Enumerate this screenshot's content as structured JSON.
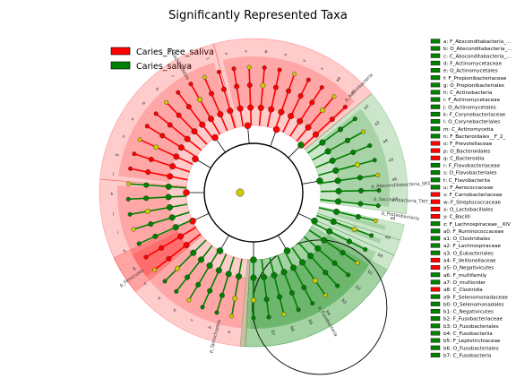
{
  "chart_data": {
    "type": "cladogram",
    "title": "Significantly Represented Taxa",
    "legend": {
      "placement": "top-left",
      "entries": [
        {
          "name": "Caries_Free_saliva",
          "color": "#ff0000"
        },
        {
          "name": "Caries_saliva",
          "color": "#008000"
        }
      ]
    },
    "colors": {
      "Caries_Free_saliva": "#ff0000",
      "Caries_saliva": "#008000",
      "non_significant": "#cccc00"
    },
    "clade_labels": [
      {
        "text": "p_Firmicutes",
        "group": "Caries_Free_saliva"
      },
      {
        "text": "p_Bacteroidetes",
        "group": "Caries_Free_saliva"
      },
      {
        "text": "p_Actinobacteria",
        "group": "Caries_saliva"
      },
      {
        "text": "p_Absconditabacteria_SR1_",
        "group": "Caries_saliva"
      },
      {
        "text": "p_Saccharibacteria_TM7_",
        "group": "Caries_saliva"
      },
      {
        "text": "p_Proteobacteria",
        "group": "Caries_saliva"
      },
      {
        "text": "p_Fusobacteria",
        "group": "Caries_saliva"
      },
      {
        "text": "p_Spirochaetes",
        "group": "Caries_saliva"
      }
    ],
    "key": [
      {
        "code": "a",
        "label": "a: F_Absconditabacteria_...",
        "group": "Caries_saliva"
      },
      {
        "code": "b",
        "label": "b: O_Absconditabacteria_...",
        "group": "Caries_saliva"
      },
      {
        "code": "c",
        "label": "c: C_Absconditabacteria_...",
        "group": "Caries_saliva"
      },
      {
        "code": "d",
        "label": "d: F_Actinomycetaceae",
        "group": "Caries_saliva"
      },
      {
        "code": "e",
        "label": "e: O_Actinomycetales",
        "group": "Caries_saliva"
      },
      {
        "code": "f",
        "label": "f: F_Propionibacteriaceae",
        "group": "Caries_saliva"
      },
      {
        "code": "g",
        "label": "g: O_Propionibacteriales",
        "group": "Caries_saliva"
      },
      {
        "code": "h",
        "label": "h: C_Actinobacteria",
        "group": "Caries_saliva"
      },
      {
        "code": "i",
        "label": "i: F_Actinomycetaceae",
        "group": "Caries_saliva"
      },
      {
        "code": "j",
        "label": "j: O_Actinomycetales",
        "group": "Caries_saliva"
      },
      {
        "code": "k",
        "label": "k: F_Corynebacteriaceae",
        "group": "Caries_saliva"
      },
      {
        "code": "l",
        "label": "l: O_Corynebacteriales",
        "group": "Caries_saliva"
      },
      {
        "code": "m",
        "label": "m: C_Actinomycetia",
        "group": "Caries_saliva"
      },
      {
        "code": "n",
        "label": "n: F_Bacteroidales__F_2_",
        "group": "Caries_saliva"
      },
      {
        "code": "o",
        "label": "o: F_Prevotellaceae",
        "group": "Caries_Free_saliva"
      },
      {
        "code": "p",
        "label": "p: O_Bacteroidales",
        "group": "Caries_Free_saliva"
      },
      {
        "code": "q",
        "label": "q: C_Bacteroidia",
        "group": "Caries_Free_saliva"
      },
      {
        "code": "r",
        "label": "r: F_Flavobacteriaceae",
        "group": "Caries_saliva"
      },
      {
        "code": "s",
        "label": "s: O_Flavobacteriales",
        "group": "Caries_saliva"
      },
      {
        "code": "t",
        "label": "t: C_Flavobacteriia",
        "group": "Caries_saliva"
      },
      {
        "code": "u",
        "label": "u: F_Aerococcaceae",
        "group": "Caries_saliva"
      },
      {
        "code": "v",
        "label": "v: F_Carnobacteriaceae",
        "group": "Caries_Free_saliva"
      },
      {
        "code": "w",
        "label": "w: F_Streptococcaceae",
        "group": "Caries_Free_saliva"
      },
      {
        "code": "x",
        "label": "x: O_Lactobacillales",
        "group": "Caries_Free_saliva"
      },
      {
        "code": "y",
        "label": "y: C_Bacilli",
        "group": "Caries_Free_saliva"
      },
      {
        "code": "z",
        "label": "z: F_Lachnospiraceae__XIV",
        "group": "Caries_saliva"
      },
      {
        "code": "a0",
        "label": "a0: F_Ruminococcaceae",
        "group": "Caries_saliva"
      },
      {
        "code": "a1",
        "label": "a1: O_Clostridiales",
        "group": "Caries_saliva"
      },
      {
        "code": "a2",
        "label": "a2: F_Lachnospiraceae",
        "group": "Caries_saliva"
      },
      {
        "code": "a3",
        "label": "a3: O_Eubacteriales",
        "group": "Caries_saliva"
      },
      {
        "code": "a4",
        "label": "a4: F_Veillonellaceae",
        "group": "Caries_Free_saliva"
      },
      {
        "code": "a5",
        "label": "a5: O_Negativicutes",
        "group": "Caries_Free_saliva"
      },
      {
        "code": "a6",
        "label": "a6: F_multifamily",
        "group": "Caries_saliva"
      },
      {
        "code": "a7",
        "label": "a7: O_multiorder",
        "group": "Caries_saliva"
      },
      {
        "code": "a8",
        "label": "a8: C_Clostridia",
        "group": "Caries_Free_saliva"
      },
      {
        "code": "a9",
        "label": "a9: F_Selenomonadaceae",
        "group": "Caries_saliva"
      },
      {
        "code": "b0",
        "label": "b0: O_Selenomonadales",
        "group": "Caries_saliva"
      },
      {
        "code": "b1",
        "label": "b1: C_Negativicutes",
        "group": "Caries_saliva"
      },
      {
        "code": "b2",
        "label": "b2: F_Fusobacteriaceae",
        "group": "Caries_saliva"
      },
      {
        "code": "b3",
        "label": "b3: O_Fusobacteriales",
        "group": "Caries_saliva"
      },
      {
        "code": "b4",
        "label": "b4: C_Fusobacteriia",
        "group": "Caries_saliva"
      },
      {
        "code": "b5",
        "label": "b5: F_Leptotrichiaceae",
        "group": "Caries_saliva"
      },
      {
        "code": "b6",
        "label": "b6: O_Fusobacteriales",
        "group": "Caries_saliva"
      },
      {
        "code": "b7",
        "label": "b7: C_Fusobacteria",
        "group": "Caries_saliva"
      }
    ]
  }
}
